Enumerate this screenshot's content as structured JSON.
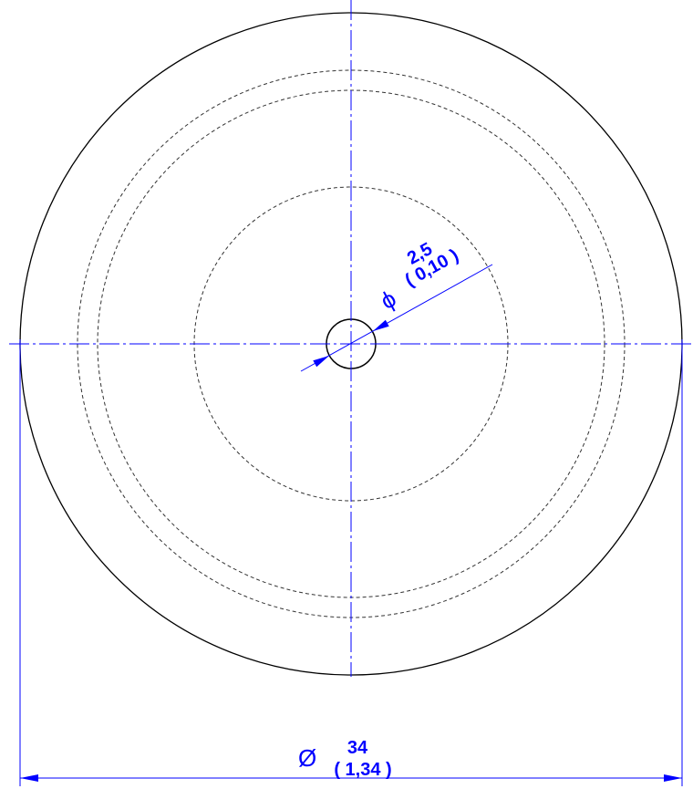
{
  "drawing": {
    "dimensions": [
      {
        "symbol": "Ø",
        "value": "34",
        "alt": "( 1,34 )"
      },
      {
        "symbol": "ϕ",
        "value": "2,5",
        "alt": "( 0,10 )"
      }
    ]
  }
}
